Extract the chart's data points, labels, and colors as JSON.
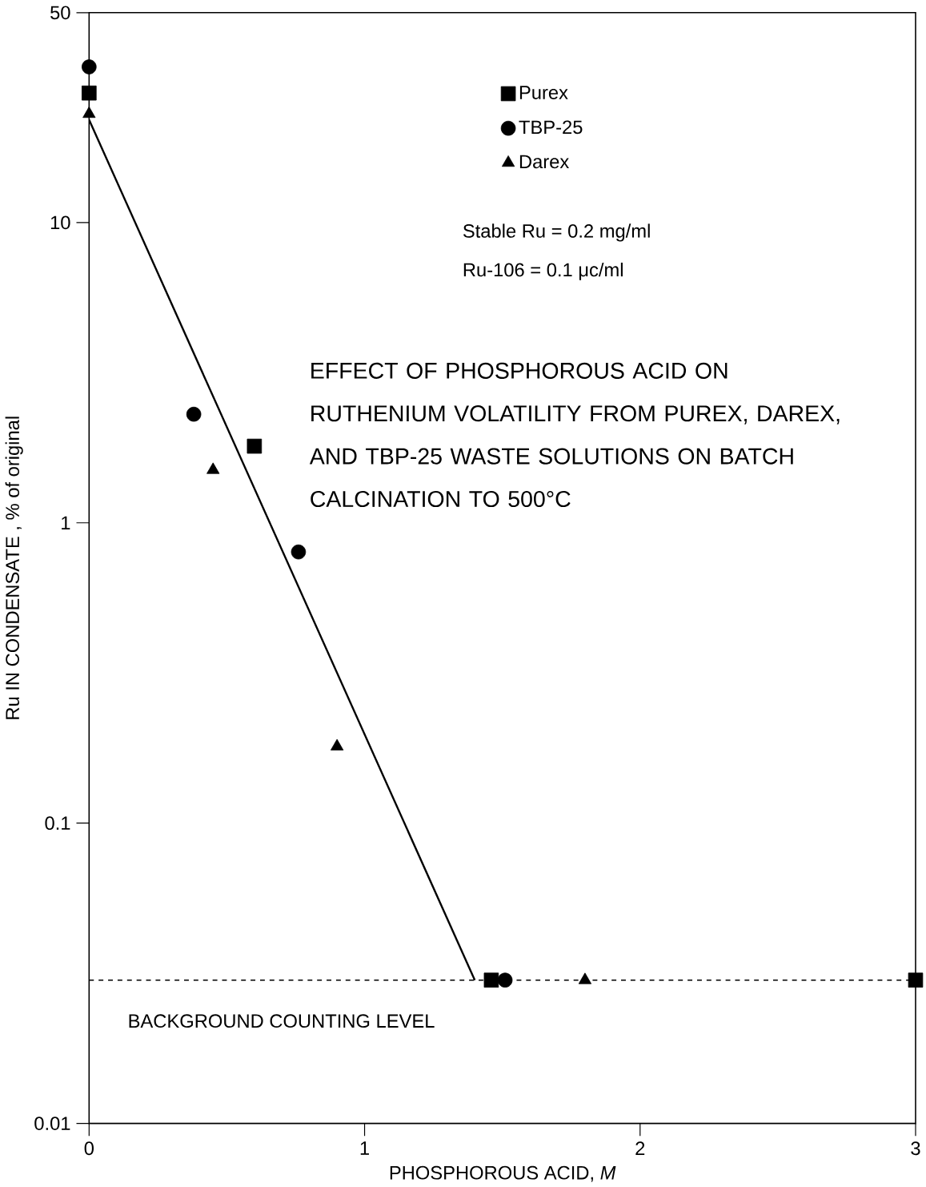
{
  "chart_data": {
    "type": "scatter",
    "title": "EFFECT OF PHOSPHOROUS ACID ON RUTHENIUM VOLATILITY FROM PUREX, DAREX, AND TBP-25 WASTE SOLUTIONS ON BATCH CALCINATION TO 500°C",
    "xlabel": "PHOSPHOROUS ACID, *M*",
    "ylabel": "Ru IN CONDENSATE ,  % of original",
    "series": [
      {
        "name": "Purex",
        "color": "#000000",
        "marker": "square",
        "x": [
          0,
          0.6,
          1.46,
          3
        ],
        "values": [
          27,
          1.8,
          0.03,
          0.03
        ]
      },
      {
        "name": "TBP-25",
        "color": "#000000",
        "marker": "circle",
        "x": [
          0,
          0.38,
          0.76,
          1.51
        ],
        "values": [
          33,
          2.3,
          0.8,
          0.03
        ]
      },
      {
        "name": "Darex",
        "color": "#000000",
        "marker": "triangle",
        "x": [
          0,
          0.45,
          0.9,
          1.8
        ],
        "values": [
          23,
          1.5,
          0.18,
          0.03
        ]
      },
      {
        "type": "line",
        "color": "#000000",
        "marker": "none",
        "line_style": "solid",
        "x": [
          0,
          1.4
        ],
        "values": [
          22,
          0.03
        ]
      }
    ],
    "annotations": [
      "Stable Ru = 0.2 mg/ml",
      "Ru-106 = 0.1 μc/ml"
    ],
    "ref_lines": [
      {
        "axis": "y",
        "value": 0.03,
        "label": "BACKGROUND COUNTING LEVEL",
        "line_style": "dashed",
        "color": "#000000"
      }
    ],
    "log": "y",
    "legend": "top",
    "xlim": [
      0,
      3
    ],
    "xticks": [
      0,
      1,
      2,
      3
    ],
    "ylim": [
      0.01,
      50
    ],
    "yticks": [
      0.01,
      0.1,
      1,
      10,
      50
    ]
  }
}
